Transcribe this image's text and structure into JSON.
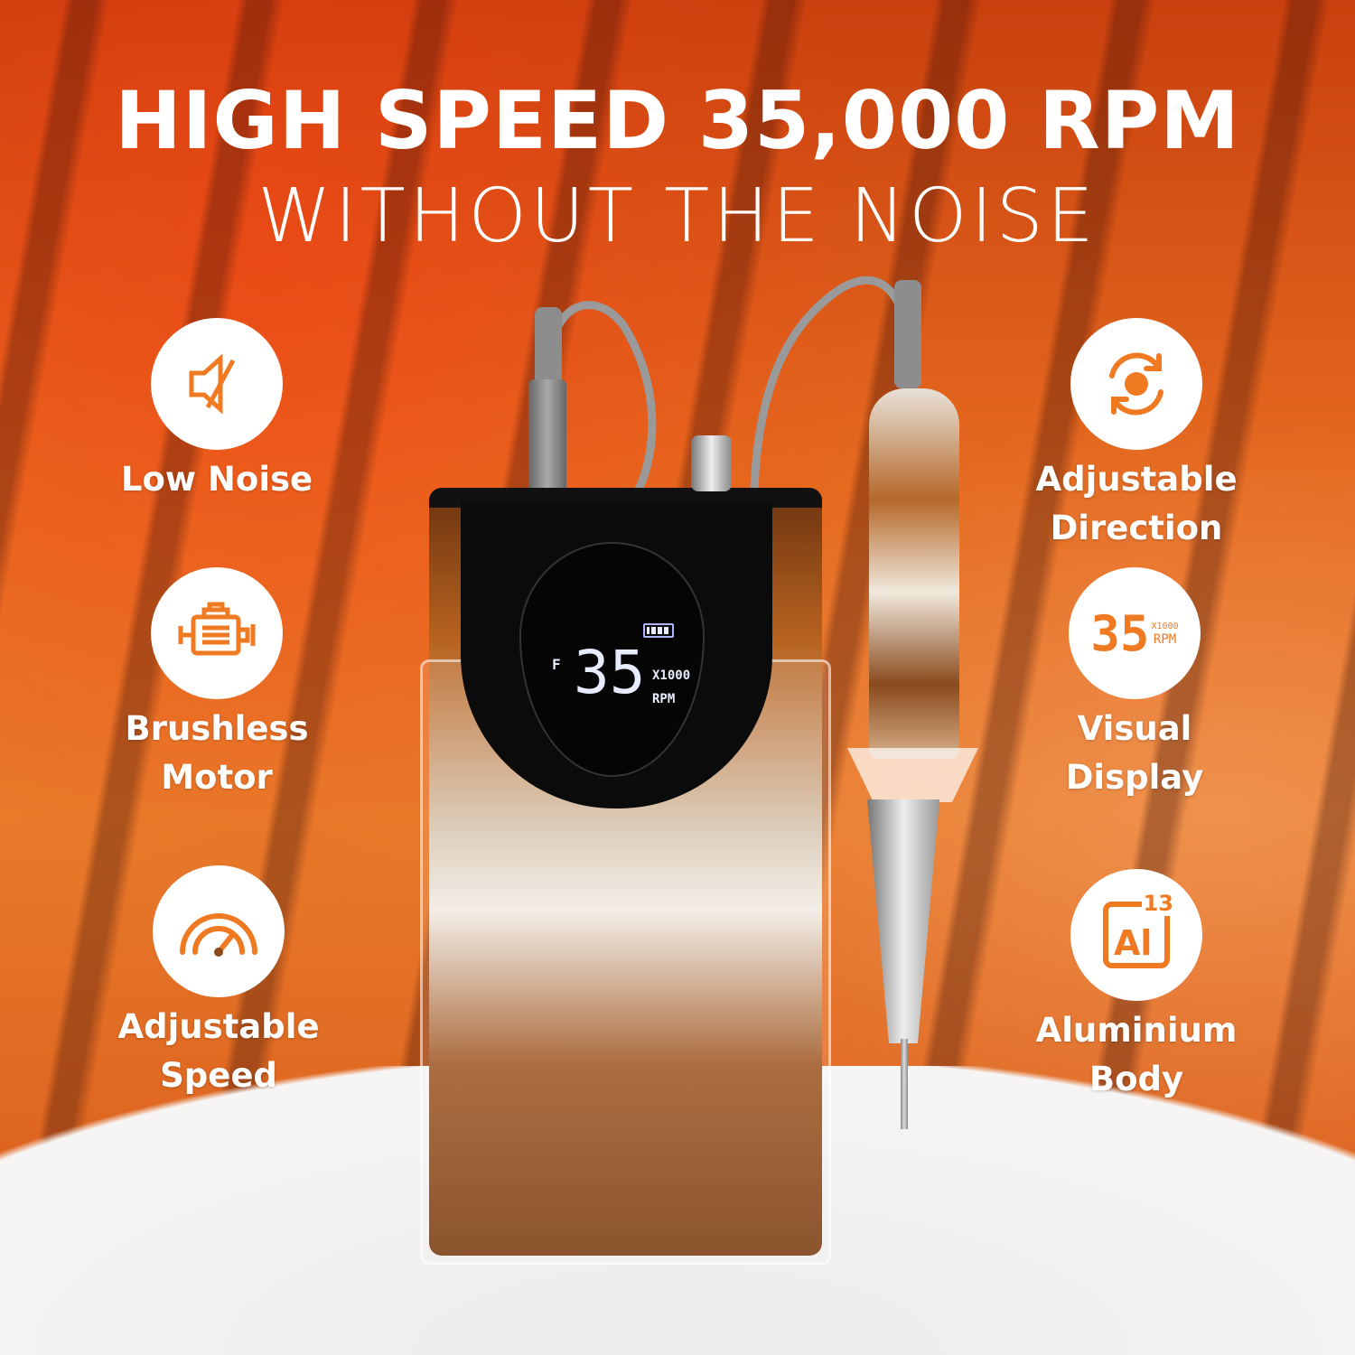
{
  "headline": {
    "line1": "HIGH SPEED 35,000 RPM",
    "line2": "WITHOUT THE NOISE"
  },
  "accent_color": "#f07a22",
  "features_left": [
    {
      "icon": "muted-speaker-icon",
      "label": "Low Noise"
    },
    {
      "icon": "motor-icon",
      "label": "Brushless\nMotor"
    },
    {
      "icon": "speedometer-icon",
      "label": "Adjustable\nSpeed"
    }
  ],
  "features_right": [
    {
      "icon": "rotate-direction-icon",
      "label": "Adjustable\nDirection"
    },
    {
      "icon": "digital-display-icon",
      "label": "Visual\nDisplay",
      "icon_text": {
        "digits": "35",
        "multiplier": "X1000",
        "unit": "RPM"
      }
    },
    {
      "icon": "aluminium-element-icon",
      "label": "Aluminium\nBody",
      "icon_text": {
        "symbol": "Al",
        "number": "13"
      }
    }
  ],
  "device_display": {
    "mode": "F",
    "speed": "35",
    "multiplier": "X1000",
    "unit": "RPM",
    "battery_level": 1.0
  }
}
